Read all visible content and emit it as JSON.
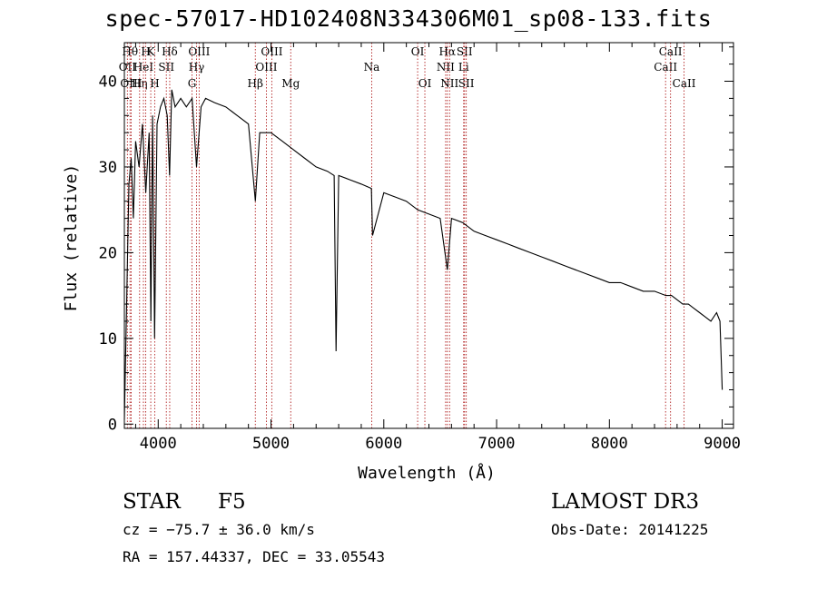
{
  "chart_data": {
    "type": "line",
    "title": "spec-57017-HD102408N334306M01_sp08-133.fits",
    "xlabel": "Wavelength (Å)",
    "ylabel": "Flux (relative)",
    "xlim": [
      3700,
      9100
    ],
    "ylim": [
      -0.5,
      44.5
    ],
    "xticks": [
      4000,
      5000,
      6000,
      7000,
      8000,
      9000
    ],
    "yticks": [
      0,
      10,
      20,
      30,
      40
    ],
    "grid": false,
    "series": [
      {
        "name": "flux",
        "x": [
          3700,
          3720,
          3740,
          3760,
          3780,
          3800,
          3830,
          3860,
          3890,
          3920,
          3935,
          3950,
          3968,
          3990,
          4020,
          4050,
          4080,
          4101,
          4120,
          4150,
          4200,
          4250,
          4300,
          4340,
          4380,
          4420,
          4500,
          4600,
          4700,
          4800,
          4861,
          4900,
          5000,
          5100,
          5200,
          5300,
          5400,
          5500,
          5560,
          5577,
          5600,
          5700,
          5800,
          5890,
          5900,
          6000,
          6100,
          6200,
          6300,
          6400,
          6500,
          6563,
          6600,
          6700,
          6800,
          6900,
          7000,
          7100,
          7200,
          7300,
          7400,
          7500,
          7600,
          7700,
          7800,
          7900,
          8000,
          8100,
          8200,
          8300,
          8400,
          8500,
          8550,
          8600,
          8650,
          8700,
          8750,
          8800,
          8850,
          8900,
          8950,
          8980,
          9000
        ],
        "y": [
          0.5,
          14,
          28,
          31,
          24,
          33,
          30,
          35,
          27,
          34,
          12,
          36,
          10,
          35,
          37,
          38,
          36,
          29,
          39,
          37,
          38,
          37,
          38,
          30,
          37,
          38,
          37.5,
          37,
          36,
          35,
          26,
          34,
          34,
          33,
          32,
          31,
          30,
          29.5,
          29,
          8.5,
          29,
          28.5,
          28,
          27.5,
          22,
          27,
          26.5,
          26,
          25,
          24.5,
          24,
          18,
          24,
          23.5,
          22.5,
          22,
          21.5,
          21,
          20.5,
          20,
          19.5,
          19,
          18.5,
          18,
          17.5,
          17,
          16.5,
          16.5,
          16,
          15.5,
          15.5,
          15,
          15,
          14.5,
          14,
          14,
          13.5,
          13,
          12.5,
          12,
          13,
          12,
          4
        ]
      }
    ],
    "lines": [
      {
        "wl": 3727,
        "label": "OII",
        "row": 2
      },
      {
        "wl": 3750,
        "label": "Hθ",
        "row": 1
      },
      {
        "wl": 3760,
        "label": "OIII",
        "row": 3
      },
      {
        "wl": 3835,
        "label": "Hη",
        "row": 3
      },
      {
        "wl": 3869,
        "label": "HeI",
        "row": 2
      },
      {
        "wl": 3889,
        "label": "H",
        "row": 1
      },
      {
        "wl": 3934,
        "label": "K",
        "row": 1
      },
      {
        "wl": 3969,
        "label": "H",
        "row": 3
      },
      {
        "wl": 4072,
        "label": "SII",
        "row": 2
      },
      {
        "wl": 4102,
        "label": "Hδ",
        "row": 1
      },
      {
        "wl": 4300,
        "label": "G",
        "row": 3
      },
      {
        "wl": 4340,
        "label": "Hγ",
        "row": 2
      },
      {
        "wl": 4363,
        "label": "OIII",
        "row": 1
      },
      {
        "wl": 4861,
        "label": "Hβ",
        "row": 3
      },
      {
        "wl": 4959,
        "label": "OIII",
        "row": 2
      },
      {
        "wl": 5007,
        "label": "OIII",
        "row": 1
      },
      {
        "wl": 5175,
        "label": "Mg",
        "row": 3
      },
      {
        "wl": 5893,
        "label": "Na",
        "row": 2
      },
      {
        "wl": 6300,
        "label": "OI",
        "row": 1
      },
      {
        "wl": 6364,
        "label": "OI",
        "row": 3
      },
      {
        "wl": 6548,
        "label": "NII",
        "row": 2
      },
      {
        "wl": 6563,
        "label": "Hα",
        "row": 1
      },
      {
        "wl": 6583,
        "label": "NII",
        "row": 3
      },
      {
        "wl": 6708,
        "label": "Li",
        "row": 2
      },
      {
        "wl": 6716,
        "label": "SII",
        "row": 1
      },
      {
        "wl": 6731,
        "label": "SII",
        "row": 3
      },
      {
        "wl": 8498,
        "label": "CaII",
        "row": 2
      },
      {
        "wl": 8542,
        "label": "CaII",
        "row": 1
      },
      {
        "wl": 8662,
        "label": "CaII",
        "row": 3
      }
    ]
  },
  "footer": {
    "class": "STAR",
    "subclass": "F5",
    "cz": "cz = −75.7 ± 36.0 km/s",
    "coords": "RA = 157.44337, DEC =  33.05543",
    "survey": "LAMOST DR3",
    "obs_date": "Obs-Date: 20141225"
  }
}
